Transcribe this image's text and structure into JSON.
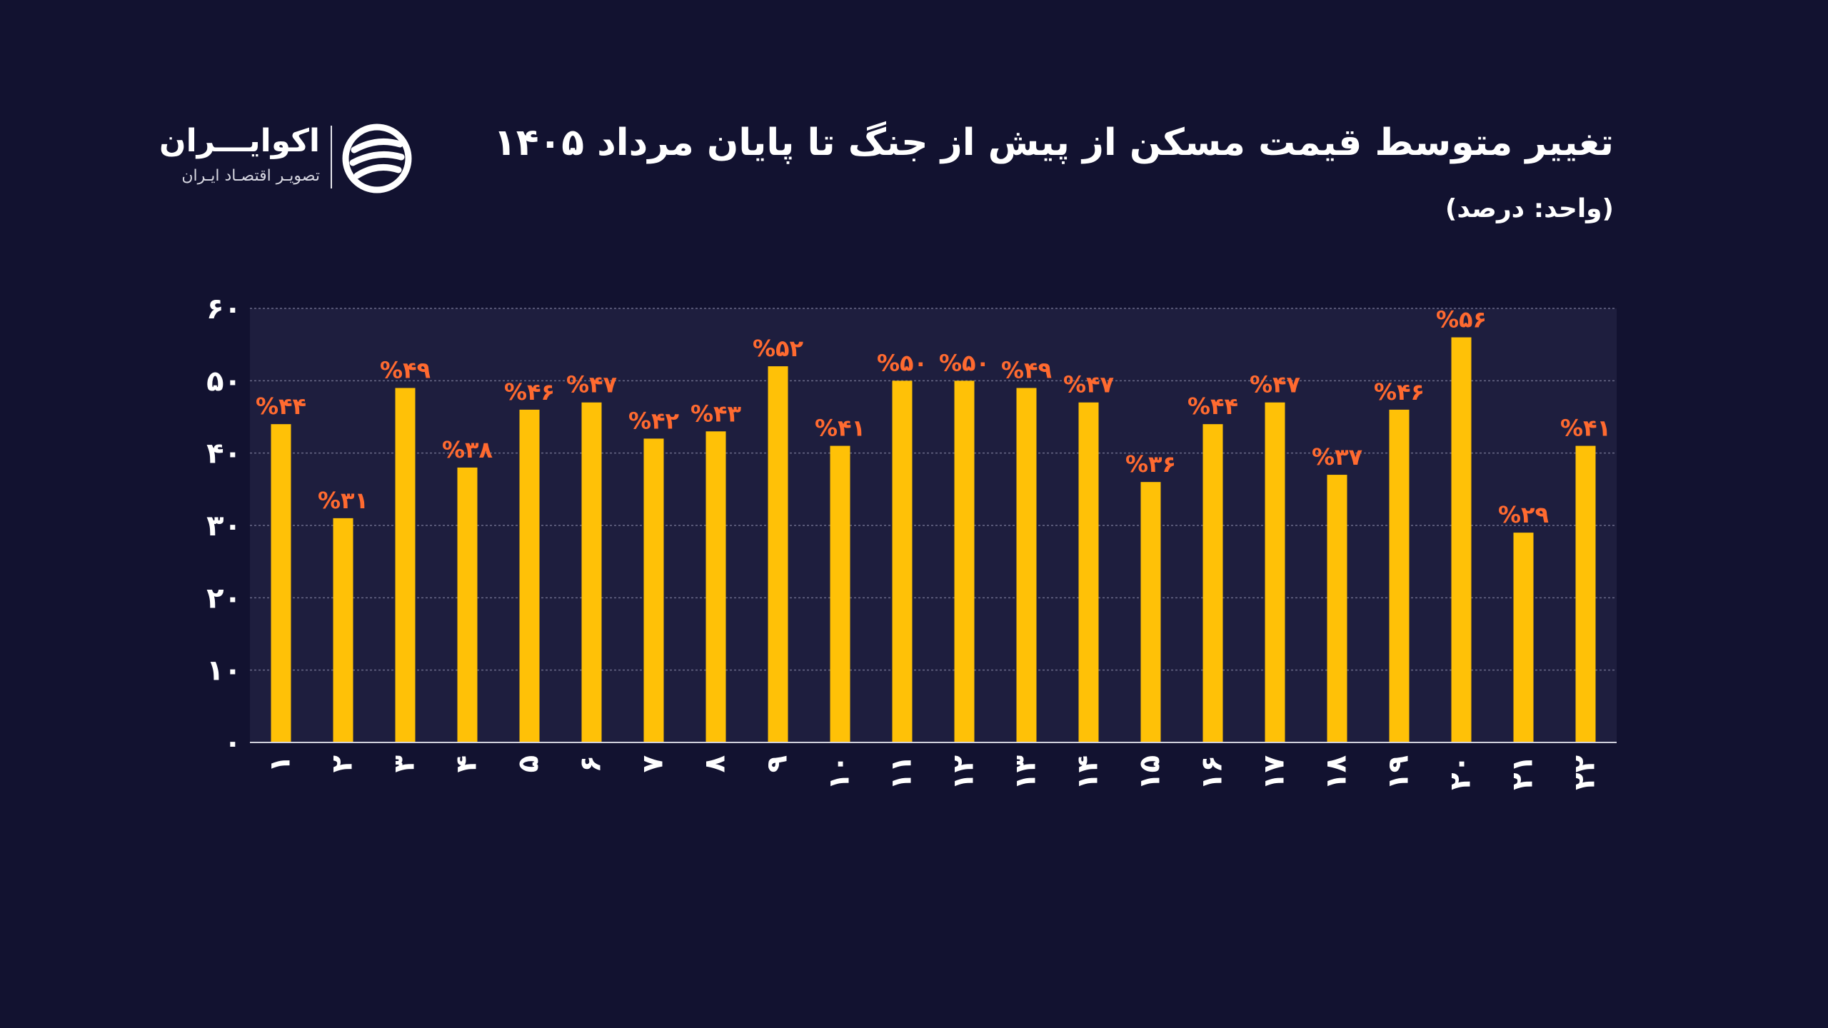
{
  "header": {
    "title": "تغییر متوسط قیمت مسکن از پیش از جنگ تا پایان مرداد ۱۴۰۵",
    "subtitle": "(واحد: درصد)"
  },
  "logo": {
    "name": "اکوایـــران",
    "tagline": "تصویـر اقتصـاد ایـران",
    "icon": "ecoiran-logo-icon"
  },
  "colors": {
    "background": "#121230",
    "plot_background": "#1e1e3e",
    "bar": "#ffc107",
    "label": "#ff6a30",
    "grid": "#6a6a88",
    "text": "#ffffff"
  },
  "chart_data": {
    "type": "bar",
    "title": "تغییر متوسط قیمت مسکن از پیش از جنگ تا پایان مرداد ۱۴۰۵",
    "subtitle": "(واحد: درصد)",
    "xlabel": "",
    "ylabel": "",
    "ylim": [
      0,
      60
    ],
    "yticks": [
      "۰",
      "۱۰",
      "۲۰",
      "۳۰",
      "۴۰",
      "۵۰",
      "۶۰"
    ],
    "grid": true,
    "categories": [
      "۱",
      "۲",
      "۳",
      "۴",
      "۵",
      "۶",
      "۷",
      "۸",
      "۹",
      "۱۰",
      "۱۱",
      "۱۲",
      "۱۳",
      "۱۴",
      "۱۵",
      "۱۶",
      "۱۷",
      "۱۸",
      "۱۹",
      "۲۰",
      "۲۱",
      "۲۲"
    ],
    "values": [
      44,
      31,
      49,
      38,
      46,
      47,
      42,
      43,
      52,
      41,
      50,
      50,
      49,
      47,
      36,
      44,
      47,
      37,
      46,
      56,
      29,
      41
    ],
    "value_labels": [
      "%۴۴",
      "%۳۱",
      "%۴۹",
      "%۳۸",
      "%۴۶",
      "%۴۷",
      "%۴۲",
      "%۴۳",
      "%۵۲",
      "%۴۱",
      "%۵۰",
      "%۵۰",
      "%۴۹",
      "%۴۷",
      "%۳۶",
      "%۴۴",
      "%۴۷",
      "%۳۷",
      "%۴۶",
      "%۵۶",
      "%۲۹",
      "%۴۱"
    ]
  }
}
